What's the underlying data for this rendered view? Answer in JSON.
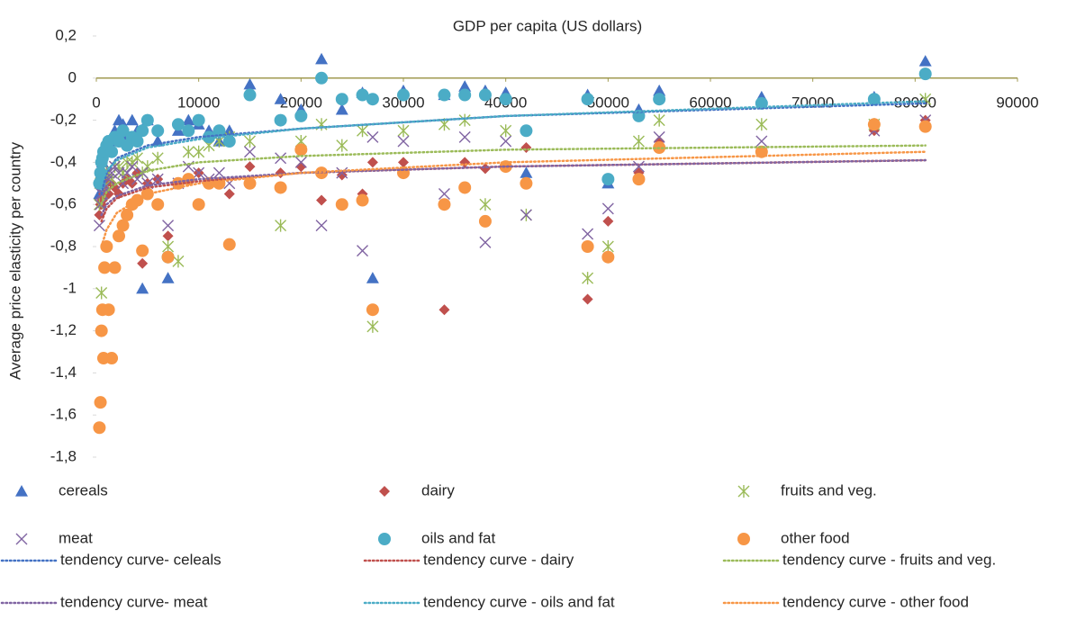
{
  "chart_data": {
    "type": "scatter",
    "title": "GDP per capita (US dollars)",
    "y_label": "Average price elasticity per country",
    "x": [
      300,
      400,
      500,
      600,
      700,
      800,
      1000,
      1200,
      1500,
      1800,
      2200,
      2600,
      3000,
      3500,
      4000,
      4500,
      5000,
      6000,
      7000,
      8000,
      9000,
      10000,
      11000,
      12000,
      13000,
      15000,
      18000,
      20000,
      22000,
      24000,
      26000,
      27000,
      30000,
      34000,
      36000,
      38000,
      40000,
      42000,
      48000,
      50000,
      53000,
      55000,
      65000,
      76000,
      81000
    ],
    "series": [
      {
        "name": "cereals",
        "color": "#4472c4",
        "marker": "triangle",
        "values": [
          -0.55,
          -0.5,
          -0.45,
          -0.4,
          -0.35,
          -0.33,
          -0.3,
          -0.35,
          -0.3,
          -0.25,
          -0.2,
          -0.22,
          -0.28,
          -0.2,
          -0.25,
          -1.0,
          -0.2,
          -0.3,
          -0.95,
          -0.25,
          -0.2,
          -0.22,
          -0.25,
          -0.3,
          -0.25,
          -0.03,
          -0.1,
          -0.15,
          0.09,
          -0.15,
          -0.07,
          -0.95,
          -0.06,
          -0.08,
          -0.04,
          -0.06,
          -0.07,
          -0.45,
          -0.08,
          -0.5,
          -0.15,
          -0.06,
          -0.09,
          -0.09,
          0.08
        ]
      },
      {
        "name": "dairy",
        "color": "#c0504d",
        "marker": "diamond",
        "values": [
          -0.65,
          -0.6,
          -0.6,
          -0.58,
          -0.55,
          -0.55,
          -0.5,
          -0.55,
          -0.5,
          -0.52,
          -0.55,
          -0.5,
          -0.48,
          -0.5,
          -0.45,
          -0.88,
          -0.5,
          -0.48,
          -0.75,
          -0.5,
          -0.48,
          -0.45,
          -0.5,
          -0.5,
          -0.55,
          -0.42,
          -0.45,
          -0.42,
          -0.58,
          -0.46,
          -0.55,
          -0.4,
          -0.4,
          -1.1,
          -0.4,
          -0.43,
          -0.1,
          -0.33,
          -1.05,
          -0.68,
          -0.45,
          -0.3,
          -0.35,
          -0.25,
          -0.2
        ]
      },
      {
        "name": "fruits and veg.",
        "color": "#9bbb59",
        "marker": "asterisk",
        "values": [
          -0.6,
          -0.5,
          -1.02,
          -0.55,
          -0.45,
          -0.5,
          -0.45,
          -0.45,
          -0.48,
          -0.42,
          -0.42,
          -0.45,
          -0.4,
          -0.4,
          -0.38,
          -0.45,
          -0.42,
          -0.38,
          -0.8,
          -0.87,
          -0.35,
          -0.35,
          -0.32,
          -0.3,
          -0.28,
          -0.3,
          -0.7,
          -0.3,
          -0.22,
          -0.32,
          -0.25,
          -1.18,
          -0.25,
          -0.22,
          -0.2,
          -0.6,
          -0.25,
          -0.65,
          -0.95,
          -0.8,
          -0.3,
          -0.2,
          -0.22,
          -0.22,
          -0.1
        ]
      },
      {
        "name": "meat",
        "color": "#8064a2",
        "marker": "x",
        "values": [
          -0.7,
          -0.6,
          -0.55,
          -0.55,
          -0.5,
          -0.52,
          -0.45,
          -0.48,
          -0.45,
          -0.42,
          -0.45,
          -0.5,
          -0.45,
          -0.42,
          -0.48,
          -0.45,
          -0.5,
          -0.48,
          -0.7,
          -0.5,
          -0.42,
          -0.45,
          -0.48,
          -0.45,
          -0.5,
          -0.35,
          -0.38,
          -0.4,
          -0.7,
          -0.45,
          -0.82,
          -0.28,
          -0.3,
          -0.55,
          -0.28,
          -0.78,
          -0.3,
          -0.65,
          -0.74,
          -0.62,
          -0.42,
          -0.28,
          -0.3,
          -0.25,
          -0.2
        ]
      },
      {
        "name": "oils and fat",
        "color": "#4bacc6",
        "marker": "circle",
        "values": [
          -0.5,
          -0.45,
          -0.4,
          -0.38,
          -0.35,
          -0.35,
          -0.32,
          -0.3,
          -0.35,
          -0.28,
          -0.3,
          -0.25,
          -0.32,
          -0.28,
          -0.3,
          -0.25,
          -0.2,
          -0.25,
          -0.85,
          -0.22,
          -0.25,
          -0.2,
          -0.28,
          -0.25,
          -0.3,
          -0.08,
          -0.2,
          -0.18,
          0.0,
          -0.1,
          -0.08,
          -0.1,
          -0.08,
          -0.08,
          -0.08,
          -0.08,
          -0.1,
          -0.25,
          -0.1,
          -0.48,
          -0.18,
          -0.1,
          -0.12,
          -0.1,
          0.02
        ]
      },
      {
        "name": "other food",
        "color": "#f79646",
        "marker": "circle",
        "values": [
          -1.66,
          -1.54,
          -1.2,
          -1.1,
          -1.33,
          -0.9,
          -0.8,
          -1.1,
          -1.33,
          -0.9,
          -0.75,
          -0.7,
          -0.65,
          -0.6,
          -0.58,
          -0.82,
          -0.55,
          -0.6,
          -0.85,
          -0.5,
          -0.48,
          -0.6,
          -0.5,
          -0.5,
          -0.79,
          -0.5,
          -0.52,
          -0.34,
          -0.45,
          -0.6,
          -0.58,
          -1.1,
          -0.45,
          -0.6,
          -0.52,
          -0.68,
          -0.42,
          -0.5,
          -0.8,
          -0.85,
          -0.48,
          -0.33,
          -0.35,
          -0.22,
          -0.23
        ]
      }
    ],
    "trends": [
      {
        "name": "tendency curve- celeals",
        "color": "#4472c4",
        "x": [
          500,
          1000,
          2000,
          5000,
          10000,
          20000,
          40000,
          81000
        ],
        "values": [
          -0.55,
          -0.45,
          -0.38,
          -0.32,
          -0.28,
          -0.24,
          -0.18,
          -0.12
        ]
      },
      {
        "name": "tendency curve - dairy",
        "color": "#c0504d",
        "x": [
          500,
          1000,
          2000,
          5000,
          10000,
          20000,
          40000,
          81000
        ],
        "values": [
          -0.68,
          -0.62,
          -0.57,
          -0.52,
          -0.49,
          -0.45,
          -0.42,
          -0.39
        ]
      },
      {
        "name": "tendency curve - fruits and veg.",
        "color": "#9bbb59",
        "x": [
          500,
          1000,
          2000,
          5000,
          10000,
          20000,
          40000,
          81000
        ],
        "values": [
          -0.6,
          -0.54,
          -0.5,
          -0.44,
          -0.4,
          -0.37,
          -0.34,
          -0.32
        ]
      },
      {
        "name": "tendency curve- meat",
        "color": "#8064a2",
        "x": [
          500,
          1000,
          2000,
          5000,
          10000,
          20000,
          40000,
          81000
        ],
        "values": [
          -0.65,
          -0.6,
          -0.56,
          -0.51,
          -0.48,
          -0.45,
          -0.42,
          -0.39
        ]
      },
      {
        "name": "tendency curve - oils and fat",
        "color": "#4bacc6",
        "x": [
          500,
          1000,
          2000,
          5000,
          10000,
          20000,
          40000,
          81000
        ],
        "values": [
          -0.5,
          -0.44,
          -0.39,
          -0.33,
          -0.29,
          -0.24,
          -0.18,
          -0.11
        ]
      },
      {
        "name": "tendency curve - other food",
        "color": "#f79646",
        "x": [
          500,
          1000,
          2000,
          5000,
          10000,
          20000,
          40000,
          81000
        ],
        "values": [
          -0.8,
          -0.72,
          -0.64,
          -0.55,
          -0.5,
          -0.45,
          -0.4,
          -0.35
        ]
      }
    ],
    "xlim": [
      0,
      90000
    ],
    "xticks": [
      0,
      10000,
      20000,
      30000,
      40000,
      50000,
      60000,
      70000,
      80000,
      90000
    ],
    "ylim": [
      -1.8,
      0.2
    ],
    "yticks": [
      {
        "value": 0.2,
        "label": "0,2"
      },
      0,
      {
        "value": -0.2,
        "label": "-0,2"
      },
      {
        "value": -0.4,
        "label": "-0,4"
      },
      {
        "value": -0.6,
        "label": "-0,6"
      },
      {
        "value": -0.8,
        "label": "-0,8"
      },
      -1,
      {
        "value": -1.2,
        "label": "-1,2"
      },
      {
        "value": -1.4,
        "label": "-1,4"
      },
      {
        "value": -1.6,
        "label": "-1,6"
      },
      {
        "value": -1.8,
        "label": "-1,8"
      }
    ],
    "zero_line_color": "#a09a50",
    "grid": false
  }
}
